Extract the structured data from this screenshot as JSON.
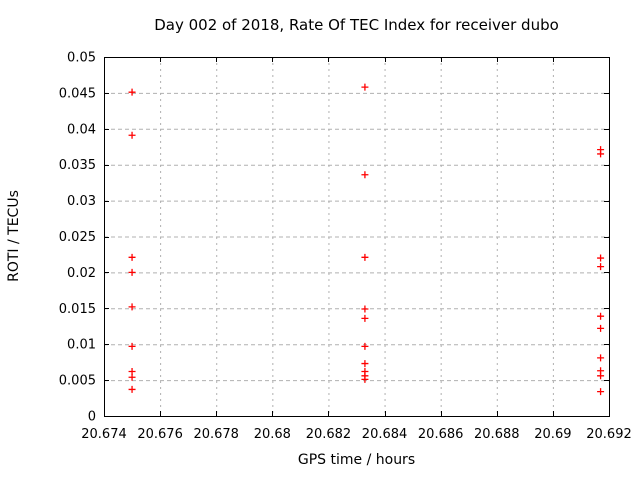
{
  "chart_data": {
    "type": "scatter",
    "title": "Day 002 of 2018, Rate Of TEC Index for receiver dubo",
    "xlabel": "GPS time / hours",
    "ylabel": "ROTI / TECUs",
    "xlim": [
      20.674,
      20.692
    ],
    "ylim": [
      0,
      0.05
    ],
    "xticks": {
      "values": [
        20.674,
        20.676,
        20.678,
        20.68,
        20.682,
        20.684,
        20.686,
        20.688,
        20.69,
        20.692
      ],
      "labels": [
        "20.674",
        "20.676",
        "20.678",
        "20.68",
        "20.682",
        "20.684",
        "20.686",
        "20.688",
        "20.69",
        "20.692"
      ]
    },
    "yticks": {
      "values": [
        0,
        0.005,
        0.01,
        0.015,
        0.02,
        0.025,
        0.03,
        0.035,
        0.04,
        0.045,
        0.05
      ],
      "labels": [
        "0",
        "0.005",
        "0.01",
        "0.015",
        "0.02",
        "0.025",
        "0.03",
        "0.035",
        "0.04",
        "0.045",
        "0.05"
      ]
    },
    "grid": true,
    "legend_position": "none",
    "marker": {
      "shape": "plus",
      "color": "#ff0000",
      "size": 7
    },
    "series": [
      {
        "name": "ROTI",
        "points": [
          [
            20.675,
            0.0451
          ],
          [
            20.675,
            0.0391
          ],
          [
            20.675,
            0.0221
          ],
          [
            20.675,
            0.02
          ],
          [
            20.675,
            0.0152
          ],
          [
            20.675,
            0.0097
          ],
          [
            20.675,
            0.0062
          ],
          [
            20.675,
            0.0054
          ],
          [
            20.675,
            0.0037
          ],
          [
            20.6833,
            0.0458
          ],
          [
            20.6833,
            0.0336
          ],
          [
            20.6833,
            0.0221
          ],
          [
            20.6833,
            0.0149
          ],
          [
            20.6833,
            0.0136
          ],
          [
            20.6833,
            0.0097
          ],
          [
            20.6833,
            0.0073
          ],
          [
            20.6833,
            0.0062
          ],
          [
            20.6833,
            0.0056
          ],
          [
            20.6833,
            0.0051
          ],
          [
            20.6917,
            0.0371
          ],
          [
            20.6917,
            0.0365
          ],
          [
            20.6917,
            0.022
          ],
          [
            20.6917,
            0.0208
          ],
          [
            20.6917,
            0.0139
          ],
          [
            20.6917,
            0.0122
          ],
          [
            20.6917,
            0.0081
          ],
          [
            20.6917,
            0.0063
          ],
          [
            20.6917,
            0.0056
          ],
          [
            20.6917,
            0.0034
          ]
        ]
      }
    ],
    "colors": {
      "marker": "#ff0000",
      "grid": "#b0b0b0",
      "axis": "#000000",
      "background": "#ffffff"
    }
  }
}
